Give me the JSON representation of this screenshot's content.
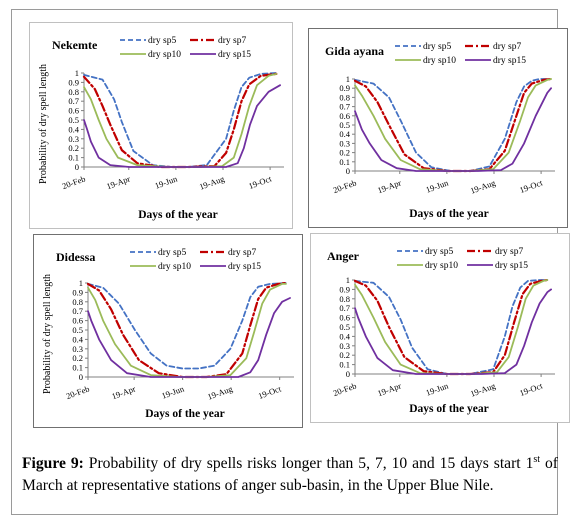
{
  "caption": {
    "label": "Figure 9:",
    "text_a": " Probability of dry spells risks longer than 5, 7, 10 and 15 days start 1",
    "superscript": "st",
    "text_b": " of March at representative stations of anger sub-basin, in the Upper Blue Nile."
  },
  "chart_data": [
    {
      "type": "line",
      "title": "Nekemte",
      "xlabel": "Days of the year",
      "ylabel": "Probability of dry spell length",
      "x_ticks": [
        "20-Feb",
        "19-Apr",
        "19-Jun",
        "19-Aug",
        "19-Oct"
      ],
      "y_ticks": [
        "0",
        "0.1",
        "0.2",
        "0.3",
        "0.4",
        "0.5",
        "0.6",
        "0.7",
        "0.8",
        "0.9",
        "1"
      ],
      "ylim": [
        0,
        1
      ],
      "legend_position": "top",
      "series": [
        {
          "name": "dry sp5",
          "color": "#4472c4",
          "dash": "dashed",
          "x": [
            51,
            75,
            90,
            100,
            115,
            140,
            165,
            185,
            210,
            235,
            245,
            255,
            265,
            280,
            300
          ],
          "y": [
            0.98,
            0.93,
            0.72,
            0.48,
            0.17,
            0.02,
            0.0,
            0.0,
            0.02,
            0.3,
            0.6,
            0.85,
            0.95,
            0.99,
            1.0
          ]
        },
        {
          "name": "dry sp7",
          "color": "#c00000",
          "dash": "dashdot",
          "x": [
            51,
            65,
            75,
            85,
            100,
            120,
            150,
            185,
            220,
            235,
            245,
            255,
            265,
            280,
            300
          ],
          "y": [
            0.96,
            0.83,
            0.65,
            0.45,
            0.18,
            0.04,
            0.0,
            0.0,
            0.01,
            0.15,
            0.4,
            0.7,
            0.88,
            0.97,
            0.99
          ]
        },
        {
          "name": "dry sp10",
          "color": "#9bbb59",
          "dash": "solid",
          "x": [
            51,
            60,
            70,
            80,
            95,
            120,
            160,
            200,
            230,
            245,
            255,
            265,
            275,
            290,
            300
          ],
          "y": [
            0.85,
            0.72,
            0.5,
            0.3,
            0.1,
            0.02,
            0.0,
            0.0,
            0.01,
            0.1,
            0.35,
            0.65,
            0.87,
            0.97,
            0.99
          ]
        },
        {
          "name": "dry sp15",
          "color": "#7030a0",
          "dash": "solid",
          "x": [
            51,
            55,
            60,
            70,
            85,
            110,
            150,
            200,
            235,
            250,
            258,
            266,
            275,
            290,
            305
          ],
          "y": [
            0.5,
            0.4,
            0.27,
            0.1,
            0.02,
            0.0,
            0.0,
            0.0,
            0.0,
            0.04,
            0.2,
            0.45,
            0.65,
            0.8,
            0.87
          ]
        }
      ]
    },
    {
      "type": "line",
      "title": "Gida ayana",
      "xlabel": "Days of the year",
      "ylabel": "",
      "x_ticks": [
        "20-Feb",
        "19-Apr",
        "19-Jun",
        "19-Aug",
        "19-Oct"
      ],
      "y_ticks": [
        "0",
        "0.1",
        "0.2",
        "0.3",
        "0.4",
        "0.5",
        "0.6",
        "0.7",
        "0.8",
        "0.9",
        "1"
      ],
      "ylim": [
        0,
        1
      ],
      "legend_position": "top",
      "series": [
        {
          "name": "dry sp5",
          "color": "#4472c4",
          "dash": "dashed",
          "x": [
            51,
            75,
            95,
            110,
            130,
            150,
            175,
            200,
            225,
            245,
            260,
            270,
            280,
            290,
            300
          ],
          "y": [
            0.99,
            0.95,
            0.8,
            0.55,
            0.2,
            0.04,
            0.0,
            0.0,
            0.05,
            0.35,
            0.75,
            0.92,
            0.98,
            1.0,
            1.0
          ]
        },
        {
          "name": "dry sp7",
          "color": "#c00000",
          "dash": "dashdot",
          "x": [
            51,
            65,
            80,
            95,
            115,
            140,
            170,
            200,
            225,
            245,
            260,
            270,
            280,
            295,
            305
          ],
          "y": [
            0.98,
            0.92,
            0.75,
            0.5,
            0.18,
            0.03,
            0.0,
            0.0,
            0.02,
            0.22,
            0.6,
            0.85,
            0.95,
            0.99,
            1.0
          ]
        },
        {
          "name": "dry sp10",
          "color": "#9bbb59",
          "dash": "solid",
          "x": [
            51,
            60,
            75,
            90,
            110,
            135,
            170,
            200,
            230,
            250,
            265,
            275,
            285,
            300,
            305
          ],
          "y": [
            0.93,
            0.82,
            0.6,
            0.35,
            0.12,
            0.02,
            0.0,
            0.0,
            0.02,
            0.2,
            0.55,
            0.8,
            0.93,
            0.99,
            1.0
          ]
        },
        {
          "name": "dry sp15",
          "color": "#7030a0",
          "dash": "solid",
          "x": [
            51,
            60,
            70,
            85,
            105,
            130,
            170,
            210,
            240,
            255,
            270,
            285,
            300,
            305
          ],
          "y": [
            0.65,
            0.45,
            0.3,
            0.12,
            0.03,
            0.0,
            0.0,
            0.0,
            0.01,
            0.08,
            0.3,
            0.6,
            0.85,
            0.9
          ]
        }
      ]
    },
    {
      "type": "line",
      "title": "Didessa",
      "xlabel": "Days of the year",
      "ylabel": "Probability of dry spell length",
      "x_ticks": [
        "20-Feb",
        "19-Apr",
        "19-Jun",
        "19-Aug",
        "19-Oct"
      ],
      "y_ticks": [
        "0",
        "0.1",
        "0.2",
        "0.3",
        "0.4",
        "0.5",
        "0.6",
        "0.7",
        "0.8",
        "0.9",
        "1"
      ],
      "ylim": [
        0,
        1
      ],
      "legend_position": "top",
      "series": [
        {
          "name": "dry sp5",
          "color": "#4472c4",
          "dash": "dashed",
          "x": [
            51,
            70,
            90,
            110,
            130,
            150,
            170,
            190,
            210,
            230,
            245,
            255,
            265,
            280,
            300
          ],
          "y": [
            0.99,
            0.95,
            0.78,
            0.5,
            0.25,
            0.12,
            0.09,
            0.09,
            0.12,
            0.3,
            0.6,
            0.85,
            0.96,
            0.99,
            1.0
          ]
        },
        {
          "name": "dry sp7",
          "color": "#c00000",
          "dash": "dashdot",
          "x": [
            51,
            65,
            80,
            95,
            115,
            140,
            170,
            200,
            225,
            245,
            255,
            265,
            275,
            290,
            300
          ],
          "y": [
            0.99,
            0.92,
            0.72,
            0.45,
            0.18,
            0.04,
            0.0,
            0.0,
            0.03,
            0.25,
            0.55,
            0.83,
            0.95,
            0.99,
            1.0
          ]
        },
        {
          "name": "dry sp10",
          "color": "#9bbb59",
          "dash": "solid",
          "x": [
            51,
            60,
            70,
            85,
            105,
            130,
            165,
            200,
            230,
            250,
            260,
            270,
            280,
            295,
            300
          ],
          "y": [
            0.95,
            0.82,
            0.6,
            0.35,
            0.12,
            0.02,
            0.0,
            0.0,
            0.02,
            0.2,
            0.48,
            0.78,
            0.93,
            0.99,
            0.99
          ]
        },
        {
          "name": "dry sp15",
          "color": "#7030a0",
          "dash": "solid",
          "x": [
            51,
            55,
            65,
            80,
            100,
            130,
            170,
            210,
            240,
            255,
            265,
            275,
            285,
            295,
            305
          ],
          "y": [
            0.7,
            0.6,
            0.4,
            0.18,
            0.04,
            0.0,
            0.0,
            0.0,
            0.0,
            0.05,
            0.18,
            0.45,
            0.68,
            0.8,
            0.84
          ]
        }
      ]
    },
    {
      "type": "line",
      "title": "Anger",
      "xlabel": "Days of the year",
      "ylabel": "",
      "x_ticks": [
        "20-Feb",
        "19-Apr",
        "19-Jun",
        "19-Aug",
        "19-Oct"
      ],
      "y_ticks": [
        "0",
        "0.1",
        "0.2",
        "0.3",
        "0.4",
        "0.5",
        "0.6",
        "0.7",
        "0.8",
        "0.9",
        "1"
      ],
      "ylim": [
        0,
        1
      ],
      "legend_position": "top",
      "series": [
        {
          "name": "dry sp5",
          "color": "#4472c4",
          "dash": "dashed",
          "x": [
            51,
            75,
            95,
            110,
            125,
            145,
            170,
            200,
            230,
            245,
            255,
            265,
            275,
            290,
            300
          ],
          "y": [
            0.99,
            0.97,
            0.82,
            0.58,
            0.28,
            0.05,
            0.0,
            0.0,
            0.05,
            0.4,
            0.72,
            0.92,
            0.99,
            1.0,
            1.0
          ]
        },
        {
          "name": "dry sp7",
          "color": "#c00000",
          "dash": "dashdot",
          "x": [
            51,
            65,
            80,
            95,
            115,
            140,
            170,
            200,
            230,
            245,
            257,
            268,
            278,
            292,
            300
          ],
          "y": [
            0.99,
            0.94,
            0.78,
            0.5,
            0.18,
            0.03,
            0.0,
            0.0,
            0.02,
            0.2,
            0.55,
            0.85,
            0.96,
            0.99,
            1.0
          ]
        },
        {
          "name": "dry sp10",
          "color": "#9bbb59",
          "dash": "solid",
          "x": [
            51,
            60,
            75,
            90,
            110,
            135,
            170,
            205,
            235,
            250,
            262,
            272,
            282,
            295,
            300
          ],
          "y": [
            0.95,
            0.84,
            0.6,
            0.34,
            0.1,
            0.01,
            0.0,
            0.0,
            0.02,
            0.18,
            0.5,
            0.8,
            0.94,
            0.99,
            1.0
          ]
        },
        {
          "name": "dry sp15",
          "color": "#7030a0",
          "dash": "solid",
          "x": [
            51,
            55,
            65,
            80,
            100,
            130,
            170,
            215,
            245,
            260,
            270,
            280,
            290,
            300,
            305
          ],
          "y": [
            0.7,
            0.6,
            0.4,
            0.17,
            0.04,
            0.0,
            0.0,
            0.0,
            0.01,
            0.1,
            0.3,
            0.55,
            0.75,
            0.87,
            0.9
          ]
        }
      ]
    }
  ]
}
